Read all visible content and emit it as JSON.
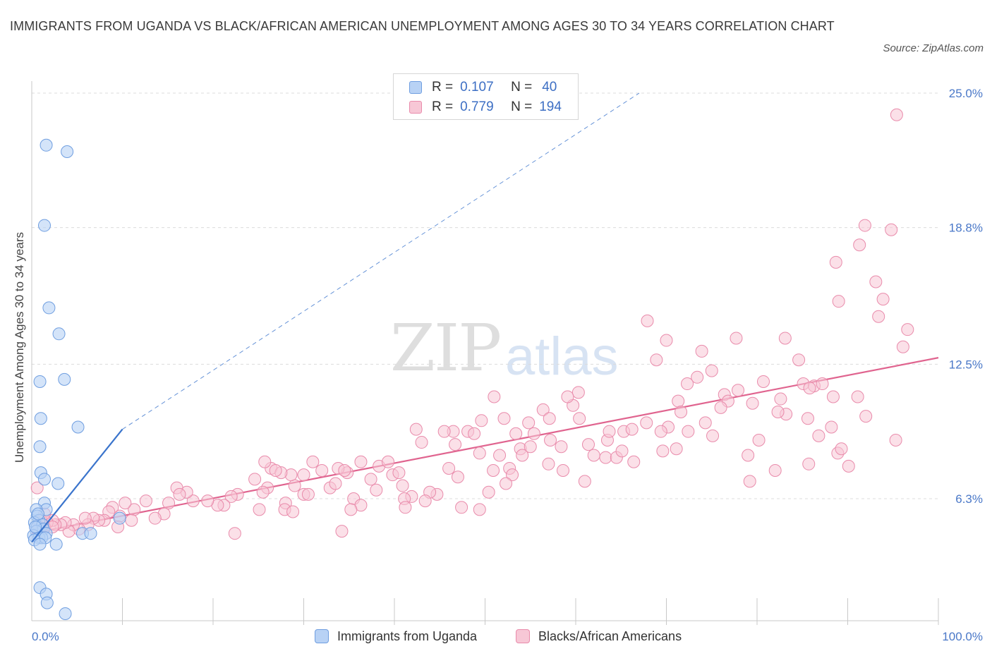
{
  "title": "IMMIGRANTS FROM UGANDA VS BLACK/AFRICAN AMERICAN UNEMPLOYMENT AMONG AGES 30 TO 34 YEARS CORRELATION CHART",
  "source": "Source: ZipAtlas.com",
  "watermark": {
    "zip": "ZIP",
    "atlas": "atlas"
  },
  "legend": {
    "rows": [
      {
        "r_label": "R =",
        "r_value": "0.107",
        "n_label": "N =",
        "n_value": "40"
      },
      {
        "r_label": "R =",
        "r_value": "0.779",
        "n_label": "N =",
        "n_value": "194"
      }
    ]
  },
  "colors": {
    "blue_fill": "#b8d2f5",
    "blue_stroke": "#6f9ee0",
    "blue_line": "#3a74cc",
    "pink_fill": "#f7c7d6",
    "pink_stroke": "#e98bab",
    "pink_line": "#e0648f",
    "axis_text": "#4a78c8",
    "grid": "#dcdcdc"
  },
  "chart_data": {
    "type": "scatter",
    "ylabel": "Unemployment Among Ages 30 to 34 years",
    "xlabel": "",
    "x_tick_labels": [
      "0.0%",
      "100.0%"
    ],
    "y_tick_labels": [
      "6.3%",
      "12.5%",
      "18.8%",
      "25.0%"
    ],
    "y_ticks": [
      6.3,
      12.5,
      18.8,
      25.0
    ],
    "xlim": [
      0,
      100
    ],
    "ylim": [
      0,
      25.5
    ],
    "grid": true,
    "legend_position": "top-center",
    "series": [
      {
        "name": "Immigrants from Uganda",
        "color": "#6f9ee0",
        "trend": {
          "x0": 0,
          "y0": 4.3,
          "x1": 10,
          "y1": 9.5,
          "extended_to_x": 67,
          "extended_y": 25.0
        },
        "points": [
          [
            1.6,
            22.6
          ],
          [
            3.9,
            22.3
          ],
          [
            1.4,
            18.9
          ],
          [
            1.9,
            15.1
          ],
          [
            3.0,
            13.9
          ],
          [
            3.6,
            11.8
          ],
          [
            0.9,
            11.7
          ],
          [
            1.0,
            10.0
          ],
          [
            5.1,
            9.6
          ],
          [
            0.9,
            8.7
          ],
          [
            1.0,
            7.5
          ],
          [
            1.4,
            7.2
          ],
          [
            2.9,
            7.0
          ],
          [
            1.4,
            6.1
          ],
          [
            1.6,
            5.8
          ],
          [
            0.5,
            5.8
          ],
          [
            0.6,
            5.5
          ],
          [
            0.8,
            5.3
          ],
          [
            0.3,
            5.2
          ],
          [
            0.6,
            5.0
          ],
          [
            1.2,
            5.1
          ],
          [
            1.3,
            4.9
          ],
          [
            0.5,
            4.8
          ],
          [
            1.6,
            4.7
          ],
          [
            0.2,
            4.6
          ],
          [
            0.8,
            4.5
          ],
          [
            1.1,
            4.5
          ],
          [
            0.3,
            4.4
          ],
          [
            1.5,
            4.5
          ],
          [
            0.9,
            4.2
          ],
          [
            2.7,
            4.2
          ],
          [
            5.6,
            4.7
          ],
          [
            6.5,
            4.7
          ],
          [
            9.7,
            5.4
          ],
          [
            0.9,
            2.2
          ],
          [
            1.6,
            1.9
          ],
          [
            1.7,
            1.5
          ],
          [
            3.7,
            1.0
          ],
          [
            0.4,
            5.0
          ],
          [
            0.7,
            5.6
          ]
        ]
      },
      {
        "name": "Blacks/African Americans",
        "color": "#e98bab",
        "trend": {
          "x0": 0,
          "y0": 4.7,
          "x1": 100,
          "y1": 12.8
        },
        "points": [
          [
            95.4,
            24.0
          ],
          [
            91.9,
            18.9
          ],
          [
            94.8,
            18.7
          ],
          [
            91.3,
            18.0
          ],
          [
            88.7,
            17.2
          ],
          [
            93.1,
            16.3
          ],
          [
            89.0,
            15.4
          ],
          [
            93.9,
            15.5
          ],
          [
            93.4,
            14.7
          ],
          [
            96.6,
            14.1
          ],
          [
            96.1,
            13.3
          ],
          [
            67.9,
            14.5
          ],
          [
            70.0,
            13.6
          ],
          [
            73.9,
            13.1
          ],
          [
            77.7,
            13.7
          ],
          [
            83.1,
            13.7
          ],
          [
            84.6,
            12.7
          ],
          [
            68.9,
            12.7
          ],
          [
            75.0,
            12.2
          ],
          [
            73.4,
            11.9
          ],
          [
            72.3,
            11.6
          ],
          [
            80.7,
            11.7
          ],
          [
            77.9,
            11.3
          ],
          [
            76.4,
            11.1
          ],
          [
            76.8,
            10.8
          ],
          [
            79.5,
            10.7
          ],
          [
            82.6,
            10.9
          ],
          [
            85.1,
            11.6
          ],
          [
            86.3,
            11.5
          ],
          [
            87.2,
            11.6
          ],
          [
            85.8,
            11.4
          ],
          [
            88.4,
            11.0
          ],
          [
            91.1,
            11.0
          ],
          [
            71.3,
            10.8
          ],
          [
            83.2,
            10.2
          ],
          [
            82.3,
            10.3
          ],
          [
            85.6,
            10.0
          ],
          [
            92.0,
            10.1
          ],
          [
            71.6,
            10.3
          ],
          [
            74.3,
            9.8
          ],
          [
            76.0,
            10.5
          ],
          [
            67.8,
            9.8
          ],
          [
            70.2,
            9.6
          ],
          [
            72.4,
            9.4
          ],
          [
            69.4,
            9.4
          ],
          [
            65.3,
            9.4
          ],
          [
            86.8,
            9.2
          ],
          [
            88.2,
            9.6
          ],
          [
            95.3,
            9.0
          ],
          [
            88.9,
            8.4
          ],
          [
            89.3,
            8.6
          ],
          [
            75.1,
            9.2
          ],
          [
            80.2,
            9.0
          ],
          [
            79.0,
            8.3
          ],
          [
            82.0,
            7.6
          ],
          [
            85.7,
            7.9
          ],
          [
            90.1,
            7.8
          ],
          [
            79.2,
            7.1
          ],
          [
            69.6,
            8.5
          ],
          [
            71.1,
            8.6
          ],
          [
            66.2,
            9.5
          ],
          [
            63.5,
            9.0
          ],
          [
            63.7,
            9.4
          ],
          [
            59.7,
            10.6
          ],
          [
            60.3,
            11.2
          ],
          [
            59.1,
            11.0
          ],
          [
            56.4,
            10.4
          ],
          [
            57.1,
            10.0
          ],
          [
            60.4,
            10.0
          ],
          [
            51.0,
            11.0
          ],
          [
            52.1,
            10.0
          ],
          [
            49.6,
            9.9
          ],
          [
            54.8,
            9.8
          ],
          [
            55.4,
            9.3
          ],
          [
            57.2,
            9.0
          ],
          [
            58.4,
            8.7
          ],
          [
            61.4,
            8.8
          ],
          [
            62.0,
            8.3
          ],
          [
            63.3,
            8.2
          ],
          [
            64.5,
            8.2
          ],
          [
            65.1,
            8.5
          ],
          [
            66.4,
            8.0
          ],
          [
            61.0,
            7.1
          ],
          [
            52.7,
            7.7
          ],
          [
            53.9,
            8.6
          ],
          [
            53.4,
            9.3
          ],
          [
            55.0,
            8.7
          ],
          [
            54.1,
            8.3
          ],
          [
            57.0,
            7.9
          ],
          [
            58.6,
            7.6
          ],
          [
            48.1,
            9.4
          ],
          [
            48.8,
            9.3
          ],
          [
            46.5,
            9.4
          ],
          [
            42.4,
            9.5
          ],
          [
            43.0,
            8.9
          ],
          [
            46.7,
            8.8
          ],
          [
            45.5,
            9.4
          ],
          [
            49.4,
            8.4
          ],
          [
            51.6,
            8.3
          ],
          [
            53.0,
            7.4
          ],
          [
            50.9,
            7.6
          ],
          [
            46.0,
            7.7
          ],
          [
            47.0,
            7.3
          ],
          [
            52.3,
            7.0
          ],
          [
            50.4,
            6.6
          ],
          [
            44.7,
            6.5
          ],
          [
            43.9,
            6.6
          ],
          [
            43.4,
            6.2
          ],
          [
            41.9,
            6.4
          ],
          [
            41.1,
            6.3
          ],
          [
            38.3,
            7.8
          ],
          [
            39.8,
            7.4
          ],
          [
            37.4,
            7.2
          ],
          [
            38.0,
            6.7
          ],
          [
            39.3,
            8.0
          ],
          [
            40.5,
            7.5
          ],
          [
            40.9,
            6.9
          ],
          [
            41.2,
            5.9
          ],
          [
            47.4,
            5.9
          ],
          [
            49.4,
            5.8
          ],
          [
            36.3,
            8.0
          ],
          [
            34.8,
            7.5
          ],
          [
            33.8,
            7.7
          ],
          [
            32.0,
            7.6
          ],
          [
            31.0,
            8.0
          ],
          [
            32.9,
            6.8
          ],
          [
            33.5,
            7.0
          ],
          [
            34.5,
            7.6
          ],
          [
            35.5,
            6.3
          ],
          [
            36.3,
            6.0
          ],
          [
            35.2,
            5.8
          ],
          [
            34.2,
            4.8
          ],
          [
            29.0,
            6.9
          ],
          [
            28.6,
            7.4
          ],
          [
            30.0,
            6.5
          ],
          [
            30.5,
            6.5
          ],
          [
            26.4,
            7.7
          ],
          [
            25.7,
            8.0
          ],
          [
            27.5,
            7.5
          ],
          [
            26.0,
            6.8
          ],
          [
            25.5,
            6.6
          ],
          [
            26.9,
            7.6
          ],
          [
            30.0,
            7.4
          ],
          [
            28.0,
            6.1
          ],
          [
            24.6,
            7.2
          ],
          [
            22.7,
            6.5
          ],
          [
            22.0,
            6.4
          ],
          [
            21.2,
            6.0
          ],
          [
            20.5,
            6.0
          ],
          [
            19.4,
            6.2
          ],
          [
            17.8,
            6.2
          ],
          [
            17.1,
            6.6
          ],
          [
            16.0,
            6.8
          ],
          [
            16.3,
            6.5
          ],
          [
            15.1,
            6.1
          ],
          [
            14.6,
            5.6
          ],
          [
            13.6,
            5.4
          ],
          [
            12.6,
            6.2
          ],
          [
            11.3,
            5.8
          ],
          [
            11.0,
            5.3
          ],
          [
            10.3,
            6.1
          ],
          [
            9.7,
            5.5
          ],
          [
            8.9,
            5.9
          ],
          [
            9.5,
            5.0
          ],
          [
            8.5,
            5.7
          ],
          [
            8.0,
            5.3
          ],
          [
            7.4,
            5.3
          ],
          [
            6.8,
            5.4
          ],
          [
            6.2,
            5.1
          ],
          [
            5.9,
            5.4
          ],
          [
            5.2,
            4.9
          ],
          [
            4.6,
            5.1
          ],
          [
            4.1,
            4.8
          ],
          [
            3.7,
            5.2
          ],
          [
            3.2,
            5.1
          ],
          [
            2.6,
            5.1
          ],
          [
            2.3,
            5.3
          ],
          [
            1.7,
            5.2
          ],
          [
            1.4,
            5.0
          ],
          [
            1.0,
            5.3
          ],
          [
            0.8,
            5.0
          ],
          [
            0.6,
            6.8
          ],
          [
            1.4,
            5.6
          ],
          [
            2.3,
            5.0
          ],
          [
            22.4,
            4.7
          ],
          [
            25.1,
            5.8
          ],
          [
            27.9,
            5.8
          ],
          [
            28.8,
            5.7
          ]
        ]
      }
    ]
  }
}
